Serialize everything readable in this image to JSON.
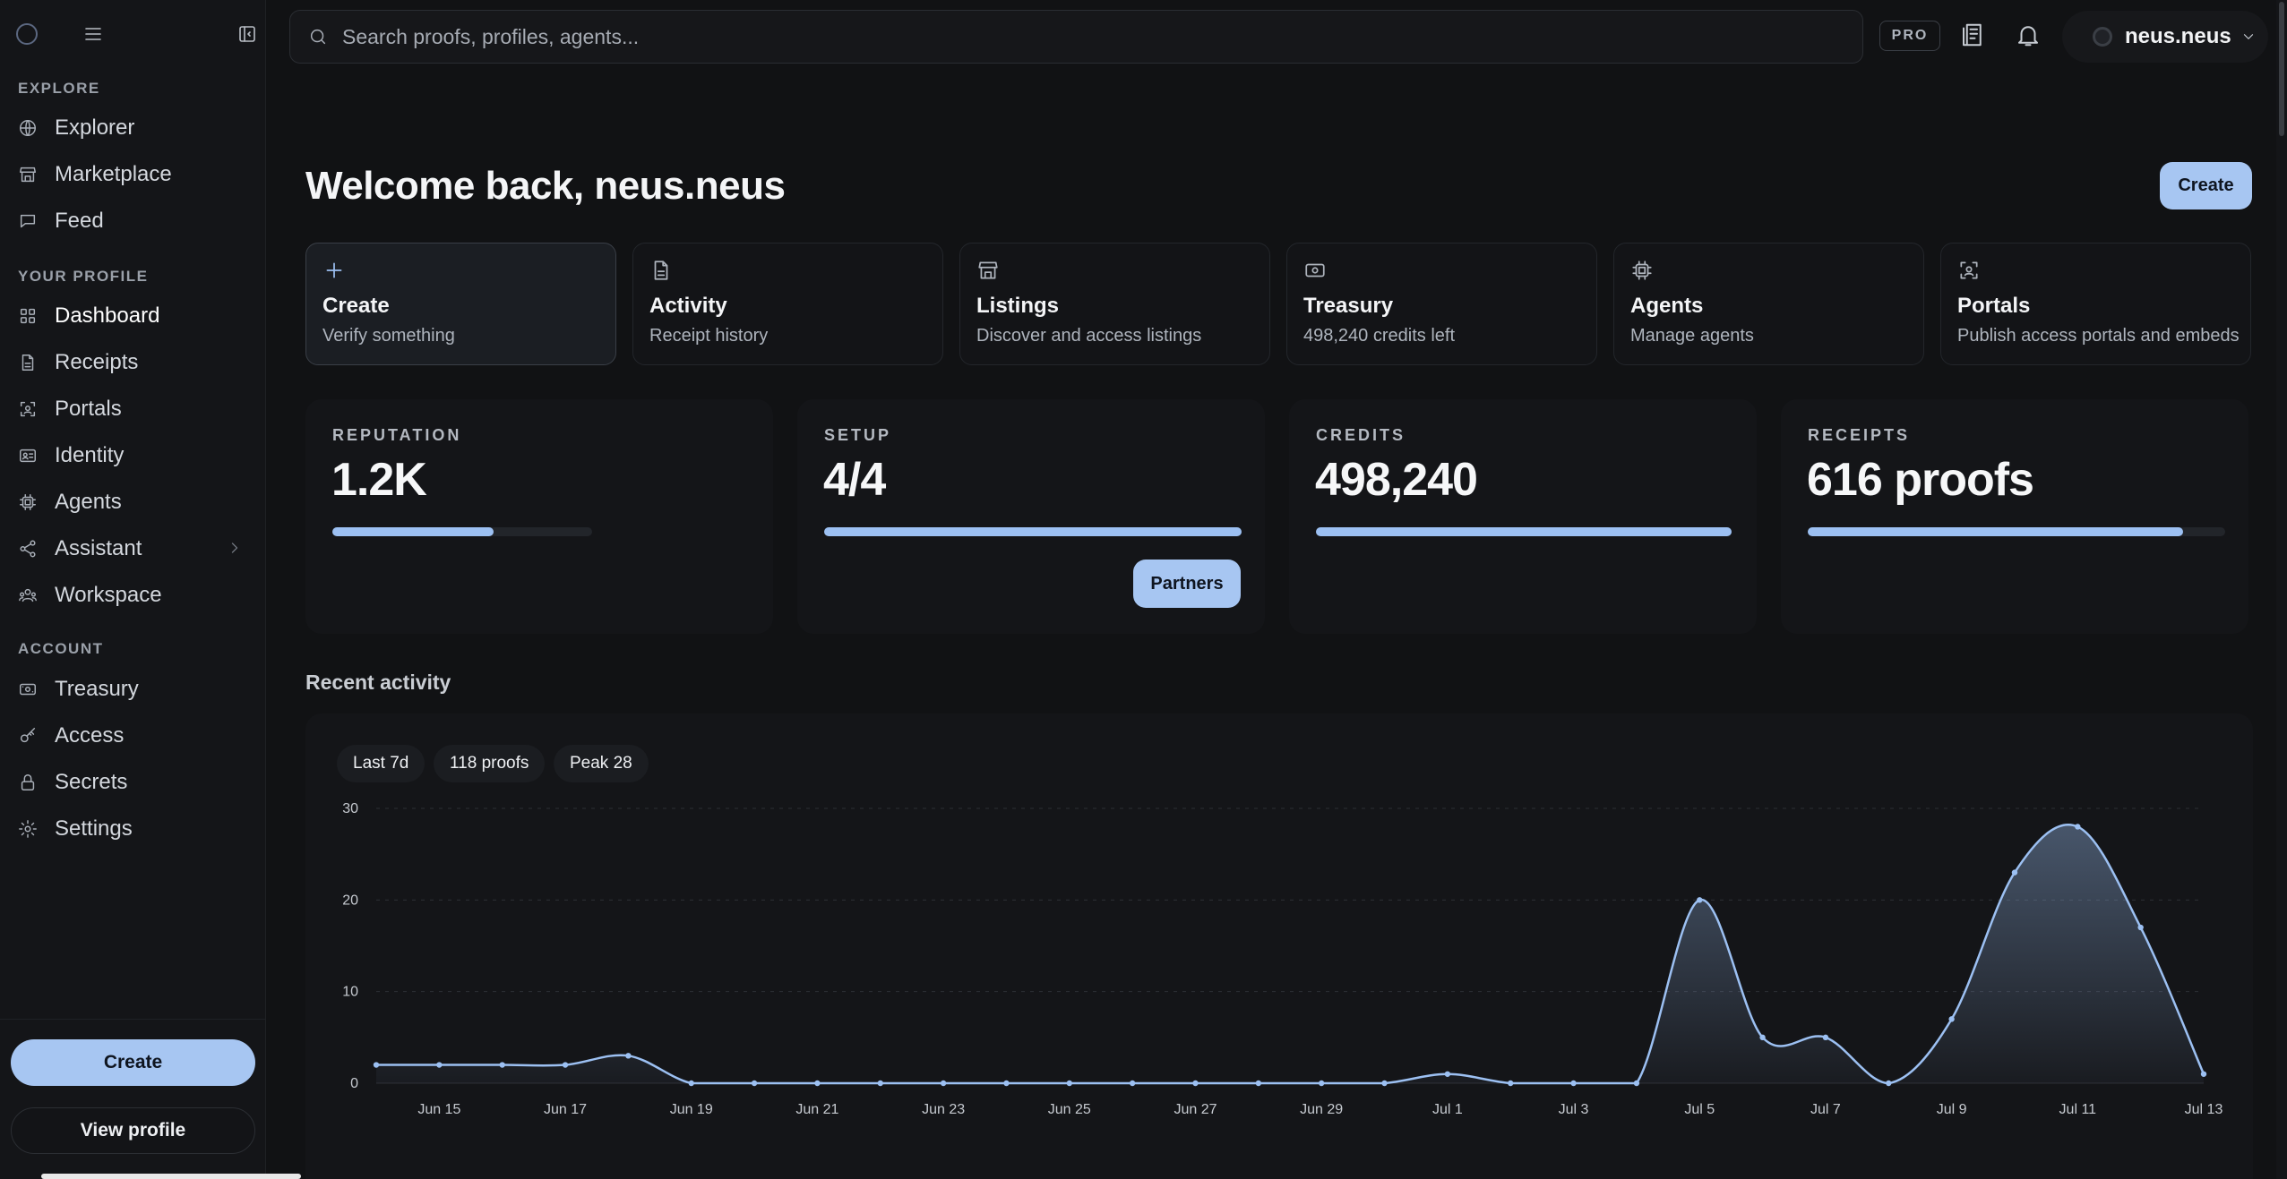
{
  "colors": {
    "background": "#111214",
    "sidebar": "#141518",
    "accent": "#a7c6f2",
    "line": "#9cc0f2"
  },
  "sidebar": {
    "sections": {
      "explore": "EXPLORE",
      "profile": "YOUR PROFILE",
      "account": "ACCOUNT"
    },
    "items": [
      {
        "label": "Explorer",
        "icon": "globe-icon"
      },
      {
        "label": "Marketplace",
        "icon": "store-icon"
      },
      {
        "label": "Feed",
        "icon": "chat-icon"
      },
      {
        "label": "Dashboard",
        "icon": "grid-icon",
        "active": true
      },
      {
        "label": "Receipts",
        "icon": "file-icon"
      },
      {
        "label": "Portals",
        "icon": "scan-icon"
      },
      {
        "label": "Identity",
        "icon": "id-card-icon"
      },
      {
        "label": "Agents",
        "icon": "chip-icon"
      },
      {
        "label": "Assistant",
        "icon": "share-icon"
      },
      {
        "label": "Workspace",
        "icon": "workspace-icon"
      },
      {
        "label": "Treasury",
        "icon": "banknote-icon"
      },
      {
        "label": "Access",
        "icon": "key-icon"
      },
      {
        "label": "Secrets",
        "icon": "lock-icon"
      },
      {
        "label": "Settings",
        "icon": "gear-icon"
      }
    ],
    "create_label": "Create",
    "view_profile_label": "View profile"
  },
  "topbar": {
    "search_placeholder": "Search proofs, profiles, agents...",
    "badge": "PRO",
    "username": "neus.neus"
  },
  "main": {
    "welcome": "Welcome back, neus.neus",
    "create_label": "Create",
    "quick_actions": [
      {
        "title": "Create",
        "subtitle": "Verify something",
        "icon": "plus-icon"
      },
      {
        "title": "Activity",
        "subtitle": "Receipt history",
        "icon": "file-icon"
      },
      {
        "title": "Listings",
        "subtitle": "Discover and access listings",
        "icon": "store-icon"
      },
      {
        "title": "Treasury",
        "subtitle": "498,240 credits left",
        "icon": "banknote-icon"
      },
      {
        "title": "Agents",
        "subtitle": "Manage agents",
        "icon": "chip-icon"
      },
      {
        "title": "Portals",
        "subtitle": "Publish access portals and embeds",
        "icon": "scan-icon"
      }
    ],
    "stats": [
      {
        "label": "REPUTATION",
        "value": "1.2K",
        "progress": 0.62
      },
      {
        "label": "SETUP",
        "value": "4/4",
        "progress": 1.0,
        "button": "Partners"
      },
      {
        "label": "CREDITS",
        "value": "498,240",
        "progress": 1.0
      },
      {
        "label": "RECEIPTS",
        "value": "616 proofs",
        "progress": 0.9
      }
    ],
    "recent_activity_title": "Recent activity",
    "chips": [
      "Last 7d",
      "118 proofs",
      "Peak 28"
    ]
  },
  "chart_data": {
    "type": "area",
    "title": "",
    "xlabel": "",
    "ylabel": "",
    "ylim": [
      0,
      30
    ],
    "yticks": [
      0,
      10,
      20,
      30
    ],
    "grid": true,
    "x": [
      "Jun 14",
      "Jun 15",
      "Jun 16",
      "Jun 17",
      "Jun 18",
      "Jun 19",
      "Jun 20",
      "Jun 21",
      "Jun 22",
      "Jun 23",
      "Jun 24",
      "Jun 25",
      "Jun 26",
      "Jun 27",
      "Jun 28",
      "Jun 29",
      "Jun 30",
      "Jul 1",
      "Jul 2",
      "Jul 3",
      "Jul 4",
      "Jul 5",
      "Jul 6",
      "Jul 7",
      "Jul 8",
      "Jul 9",
      "Jul 10",
      "Jul 11",
      "Jul 12",
      "Jul 13"
    ],
    "xtick_labels": [
      "Jun 15",
      "Jun 17",
      "Jun 19",
      "Jun 21",
      "Jun 23",
      "Jun 25",
      "Jun 27",
      "Jun 29",
      "Jul 1",
      "Jul 3",
      "Jul 5",
      "Jul 7",
      "Jul 9",
      "Jul 11",
      "Jul 13"
    ],
    "series": [
      {
        "values": [
          2,
          2,
          2,
          2,
          3,
          0,
          0,
          0,
          0,
          0,
          0,
          0,
          0,
          0,
          0,
          0,
          0,
          1,
          0,
          0,
          0,
          20,
          5,
          5,
          0,
          7,
          23,
          28,
          17,
          1
        ]
      }
    ]
  }
}
